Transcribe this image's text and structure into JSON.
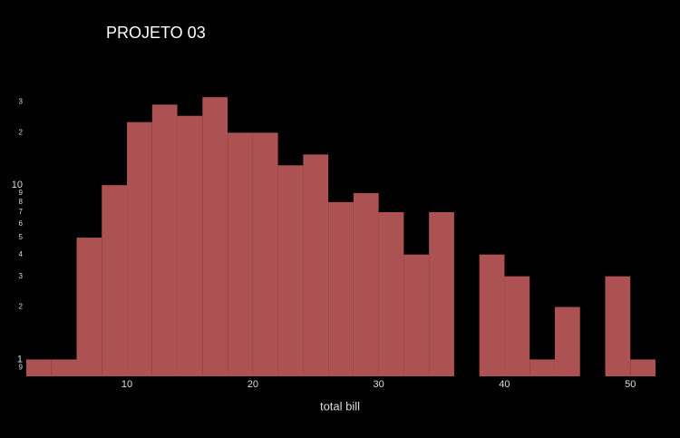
{
  "chart_data": {
    "type": "histogram",
    "title": "PROJETO 03",
    "x_label": "total bill",
    "bins": [
      2,
      4,
      6,
      8,
      10,
      12,
      14,
      16,
      18,
      20,
      22,
      24,
      26,
      28,
      30,
      32,
      34,
      36,
      38,
      40,
      42,
      44,
      46,
      48,
      50,
      52
    ],
    "values": [
      1,
      1,
      5,
      10,
      23,
      29,
      25,
      32,
      20,
      20,
      13,
      15,
      8,
      9,
      7,
      4,
      7,
      0,
      4,
      3,
      1,
      2,
      0,
      3,
      1
    ],
    "color": "#ad5252",
    "xlim": [
      2,
      52
    ],
    "xticks": [
      10,
      20,
      30,
      40,
      50
    ],
    "ylim": [
      0.8,
      37
    ],
    "log_y": true,
    "yticks": [
      {
        "value": 0.9,
        "label": "9"
      },
      1,
      2,
      3,
      4,
      5,
      6,
      7,
      8,
      9,
      10,
      {
        "value": 20,
        "label": "2"
      },
      {
        "value": 30,
        "label": "3"
      }
    ],
    "grid": false
  }
}
